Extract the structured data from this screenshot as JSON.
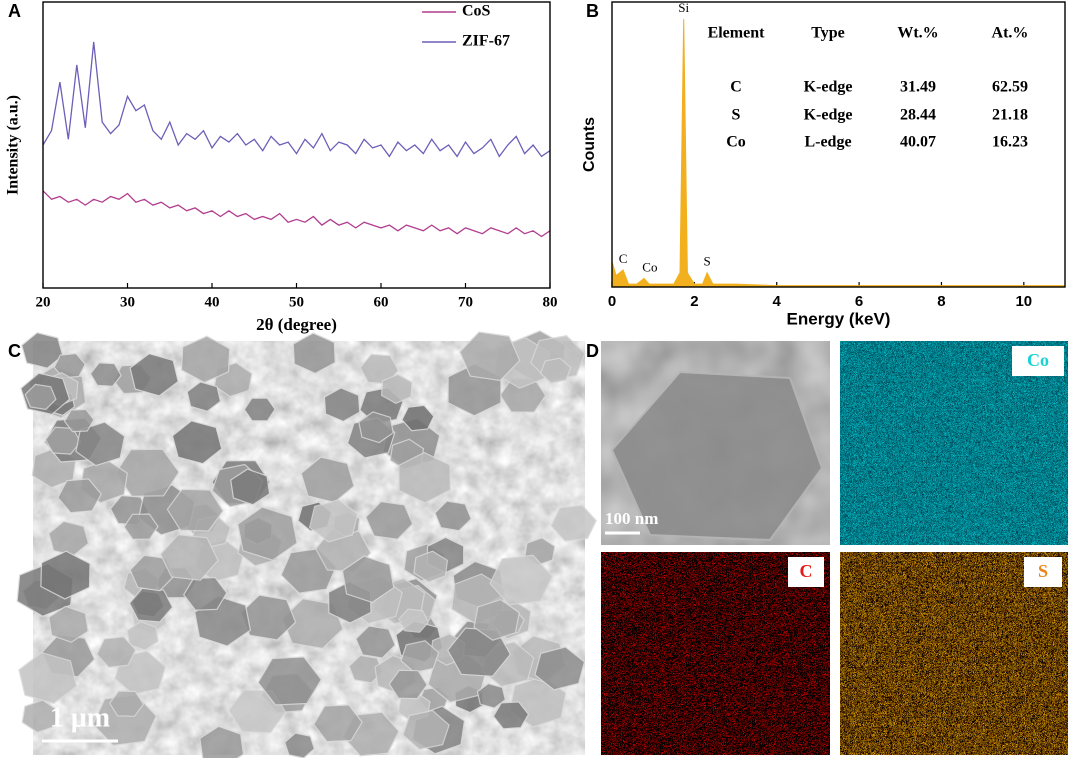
{
  "panel_labels": [
    "A",
    "B",
    "C",
    "D"
  ],
  "chart_data": [
    {
      "type": "line",
      "xlabel": "2θ (degree)",
      "ylabel": "Intensity (a.u.)",
      "x": [
        20,
        21,
        22,
        23,
        24,
        25,
        26,
        27,
        28,
        29,
        30,
        31,
        32,
        33,
        34,
        35,
        36,
        37,
        38,
        39,
        40,
        41,
        42,
        43,
        44,
        45,
        46,
        47,
        48,
        49,
        50,
        51,
        52,
        53,
        54,
        55,
        56,
        57,
        58,
        59,
        60,
        61,
        62,
        63,
        64,
        65,
        66,
        67,
        68,
        69,
        70,
        71,
        72,
        73,
        74,
        75,
        76,
        77,
        78,
        79,
        80
      ],
      "series": [
        {
          "name": "CoS",
          "color": "#b23d8f",
          "values": [
            34,
            31,
            32,
            30,
            31,
            29,
            31,
            30,
            32,
            31,
            33,
            30,
            31,
            29,
            30,
            28,
            29,
            27,
            28,
            26,
            27,
            25,
            27,
            25,
            26,
            24,
            25,
            24,
            26,
            23,
            24,
            23,
            25,
            22,
            24,
            22,
            23,
            21,
            23,
            22,
            21,
            22,
            20,
            22,
            21,
            20,
            22,
            20,
            21,
            19,
            21,
            20,
            19,
            21,
            20,
            19,
            21,
            19,
            20,
            18,
            20
          ]
        },
        {
          "name": "ZIF-67",
          "color": "#6c5fb8",
          "values": [
            50,
            55,
            72,
            52,
            78,
            56,
            86,
            58,
            54,
            57,
            67,
            62,
            64,
            55,
            52,
            58,
            50,
            54,
            52,
            55,
            49,
            53,
            51,
            54,
            50,
            52,
            48,
            53,
            50,
            51,
            47,
            52,
            49,
            54,
            48,
            51,
            50,
            47,
            52,
            49,
            50,
            46,
            51,
            48,
            50,
            47,
            52,
            48,
            50,
            46,
            51,
            47,
            49,
            52,
            46,
            50,
            53,
            47,
            50,
            46,
            48
          ]
        }
      ],
      "xlim": [
        20,
        80
      ],
      "ylim": [
        0,
        100
      ],
      "xticks": [
        20,
        30,
        40,
        50,
        60,
        70,
        80
      ],
      "legend": "upper right"
    },
    {
      "type": "area",
      "xlabel": "Energy (keV)",
      "ylabel": "Counts",
      "x": [
        0,
        0.1,
        0.27,
        0.4,
        0.6,
        0.78,
        0.9,
        1.2,
        1.5,
        1.65,
        1.74,
        1.83,
        2.0,
        2.2,
        2.31,
        2.45,
        3,
        4,
        5,
        6,
        7,
        8,
        9,
        10,
        11
      ],
      "values": [
        9,
        4,
        6,
        1,
        1,
        3,
        1,
        1,
        1,
        5,
        94,
        5,
        1,
        1,
        5,
        1,
        1,
        0.5,
        0.5,
        0.5,
        0.5,
        0.5,
        0.5,
        0.5,
        0.5
      ],
      "color": "#f2b01e",
      "xlim": [
        0,
        11
      ],
      "ylim": [
        0,
        100
      ],
      "xticks": [
        0,
        2,
        4,
        6,
        8,
        10
      ],
      "peak_labels": [
        {
          "text": "Si",
          "x": 1.74,
          "y": 94
        },
        {
          "text": "C",
          "x": 0.27,
          "y": 6
        },
        {
          "text": "Co",
          "x": 0.92,
          "y": 3
        },
        {
          "text": "S",
          "x": 2.31,
          "y": 5
        }
      ],
      "table": {
        "columns": [
          "Element",
          "Type",
          "Wt.%",
          "At.%"
        ],
        "rows": [
          [
            "C",
            "K-edge",
            31.49,
            62.59
          ],
          [
            "S",
            "K-edge",
            28.44,
            21.18
          ],
          [
            "Co",
            "L-edge",
            40.07,
            16.23
          ]
        ]
      }
    }
  ],
  "images": {
    "sem_scale_bar": "1 μm",
    "tem_scale_bar": "100 nm",
    "maps": [
      "Co",
      "C",
      "S"
    ]
  }
}
